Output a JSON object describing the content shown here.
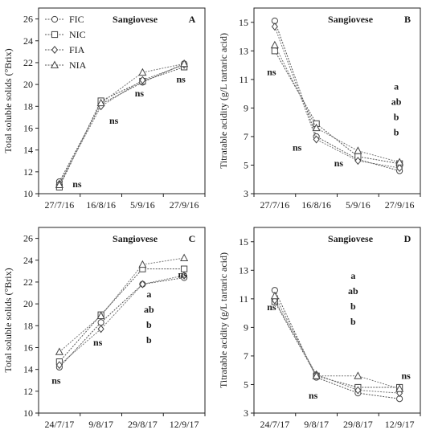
{
  "chart_data": [
    {
      "type": "line",
      "panel": "A",
      "title": "Sangiovese",
      "categories": [
        "27/7/16",
        "16/8/16",
        "5/9/16",
        "27/9/16"
      ],
      "ylabel": "Total soluble solids (°Brix)",
      "ylim": [
        10,
        27
      ],
      "yticks": [
        10,
        12,
        14,
        16,
        18,
        20,
        22,
        24,
        26
      ],
      "grid": false,
      "legend": "top-left",
      "series": [
        {
          "name": "FIC",
          "marker": "circle",
          "values": [
            11.1,
            18.2,
            20.2,
            21.9
          ]
        },
        {
          "name": "NIC",
          "marker": "square",
          "values": [
            10.6,
            18.5,
            20.3,
            21.6
          ]
        },
        {
          "name": "FIA",
          "marker": "diamond",
          "values": [
            10.9,
            18.0,
            20.4,
            21.8
          ]
        },
        {
          "name": "NIA",
          "marker": "triangle",
          "values": [
            10.8,
            18.3,
            21.1,
            21.9
          ]
        }
      ],
      "annotations": [
        [
          "ns"
        ],
        [
          "ns"
        ],
        [
          "ns"
        ],
        [
          "ns"
        ]
      ]
    },
    {
      "type": "line",
      "panel": "B",
      "title": "Sangiovese",
      "categories": [
        "27/7/16",
        "16/8/16",
        "5/9/16",
        "27/9/16"
      ],
      "ylabel": "Titratable acidity (g/L tartaric acid)",
      "ylim": [
        3,
        16
      ],
      "yticks": [
        3,
        5,
        7,
        9,
        11,
        13,
        15
      ],
      "grid": false,
      "legend": "none",
      "series": [
        {
          "name": "FIC",
          "marker": "circle",
          "values": [
            15.1,
            7.0,
            5.4,
            4.6
          ]
        },
        {
          "name": "NIC",
          "marker": "square",
          "values": [
            13.0,
            7.9,
            5.6,
            5.1
          ]
        },
        {
          "name": "FIA",
          "marker": "diamond",
          "values": [
            14.7,
            6.8,
            5.3,
            4.8
          ]
        },
        {
          "name": "NIA",
          "marker": "triangle",
          "values": [
            13.4,
            7.6,
            6.0,
            5.2
          ]
        }
      ],
      "annotations": [
        [
          "ns"
        ],
        [
          "ns"
        ],
        [
          "ns"
        ],
        [
          "a",
          "ab",
          "b",
          "b"
        ]
      ]
    },
    {
      "type": "line",
      "panel": "C",
      "title": "Sangiovese",
      "categories": [
        "24/7/17",
        "9/8/17",
        "29/8/17",
        "12/9/17"
      ],
      "ylabel": "Total soluble solids (°Brix)",
      "ylim": [
        10,
        27
      ],
      "yticks": [
        10,
        12,
        14,
        16,
        18,
        20,
        22,
        24,
        26
      ],
      "grid": false,
      "legend": "none",
      "series": [
        {
          "name": "FIC",
          "marker": "circle",
          "values": [
            14.2,
            18.3,
            21.8,
            22.4
          ]
        },
        {
          "name": "NIC",
          "marker": "square",
          "values": [
            14.7,
            19.0,
            23.2,
            23.2
          ]
        },
        {
          "name": "FIA",
          "marker": "diamond",
          "values": [
            14.4,
            17.7,
            21.8,
            22.6
          ]
        },
        {
          "name": "NIA",
          "marker": "triangle",
          "values": [
            15.6,
            18.9,
            23.6,
            24.2
          ]
        }
      ],
      "annotations": [
        [
          "ns"
        ],
        [
          "ns"
        ],
        [
          "a",
          "ab",
          "b",
          "b"
        ],
        [
          "ns"
        ]
      ]
    },
    {
      "type": "line",
      "panel": "D",
      "title": "Sangiovese",
      "categories": [
        "24/7/17",
        "9/8/17",
        "29/8/17",
        "12/9/17"
      ],
      "ylabel": "Titratable acidity (g/L tartaric acid)",
      "ylim": [
        3,
        16
      ],
      "yticks": [
        3,
        5,
        7,
        9,
        11,
        13,
        15
      ],
      "grid": false,
      "legend": "none",
      "series": [
        {
          "name": "FIC",
          "marker": "circle",
          "values": [
            11.6,
            5.5,
            4.4,
            4.0
          ]
        },
        {
          "name": "NIC",
          "marker": "square",
          "values": [
            10.8,
            5.6,
            4.8,
            4.8
          ]
        },
        {
          "name": "FIA",
          "marker": "diamond",
          "values": [
            10.9,
            5.7,
            4.6,
            4.4
          ]
        },
        {
          "name": "NIA",
          "marker": "triangle",
          "values": [
            11.2,
            5.6,
            5.6,
            4.7
          ]
        }
      ],
      "annotations": [
        [
          "ns"
        ],
        [
          "ns"
        ],
        [
          "a",
          "ab",
          "b",
          "b"
        ],
        [
          "ns"
        ]
      ]
    }
  ]
}
